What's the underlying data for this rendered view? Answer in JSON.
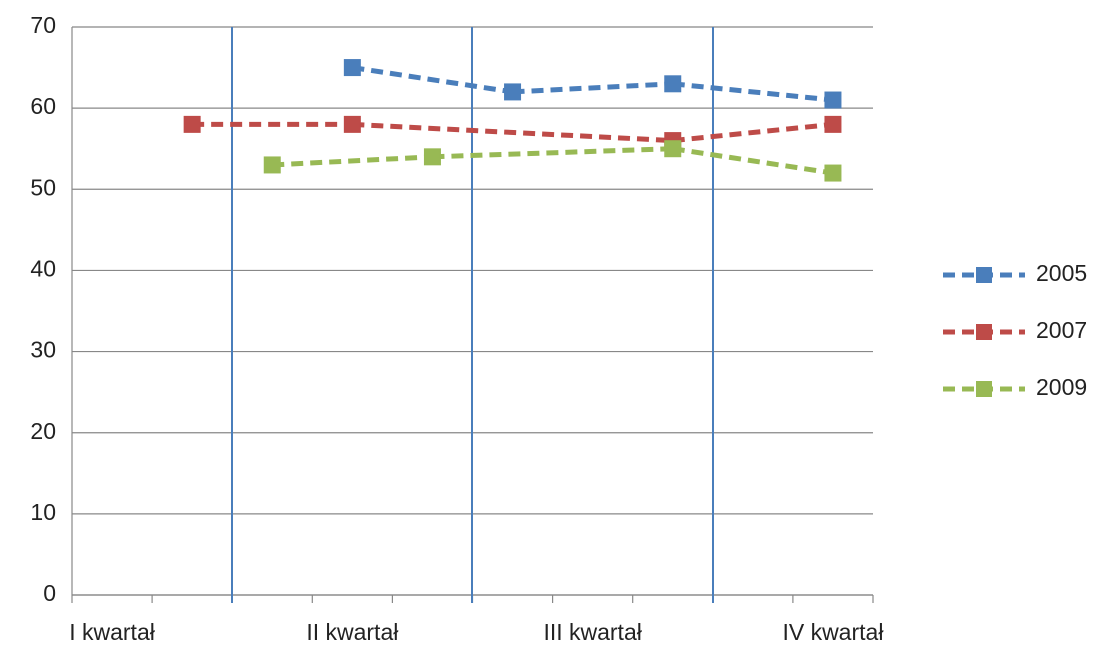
{
  "chart_data": {
    "type": "line",
    "categories": [
      "I kwartał",
      null,
      null,
      "II kwartał",
      null,
      null,
      "III kwartał",
      null,
      null,
      "IV kwartał"
    ],
    "series": [
      {
        "name": "2005",
        "color": "#4a7ebb",
        "values": [
          null,
          null,
          null,
          65,
          null,
          62,
          null,
          63,
          null,
          61
        ]
      },
      {
        "name": "2007",
        "color": "#be4b48",
        "values": [
          null,
          58,
          null,
          58,
          null,
          null,
          null,
          56,
          null,
          58
        ]
      },
      {
        "name": "2009",
        "color": "#98b954",
        "values": [
          null,
          null,
          53,
          null,
          54,
          null,
          null,
          55,
          null,
          52
        ]
      }
    ],
    "ylim": [
      0,
      70
    ],
    "yticks": [
      0,
      10,
      20,
      30,
      40,
      50,
      60,
      70
    ],
    "grid": true,
    "legend": "right"
  }
}
